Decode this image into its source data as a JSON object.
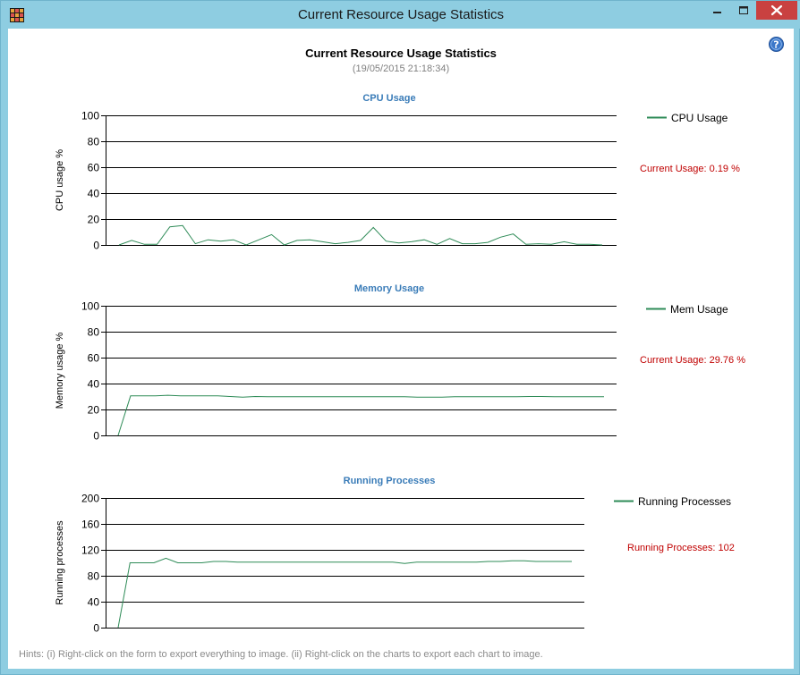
{
  "window": {
    "title": "Current Resource Usage Statistics"
  },
  "report": {
    "title": "Current Resource Usage Statistics",
    "timestamp": "(19/05/2015 21:18:34)"
  },
  "colors": {
    "title_bar": "#8ecde1",
    "close_button": "#c94140",
    "chart_title": "#3a7cb8",
    "series_line": "#2e8b57",
    "current_value": "#c00000"
  },
  "icons": {
    "app": "grid-app-icon",
    "help": "question-icon",
    "minimize": "minimize-icon",
    "maximize": "maximize-icon",
    "close": "close-icon"
  },
  "chart_data": [
    {
      "type": "line",
      "title": "CPU Usage",
      "ylabel": "CPU usage %",
      "ylim": [
        0,
        100
      ],
      "yticks": [
        0,
        20,
        40,
        60,
        80,
        100
      ],
      "legend": "top-right",
      "current_text": "Current Usage: 0.19 %",
      "series": [
        {
          "name": "CPU Usage",
          "values": [
            0,
            3.5,
            0.5,
            0.5,
            14,
            15,
            1,
            4,
            3,
            4,
            0,
            4,
            8,
            0,
            3.5,
            4,
            2.5,
            1,
            2,
            3.5,
            13.5,
            3,
            1.5,
            2.5,
            4,
            0.5,
            5,
            1,
            1,
            2,
            6,
            8.5,
            0.5,
            1,
            0.5,
            2.5,
            0.5,
            0.5,
            0
          ]
        }
      ]
    },
    {
      "type": "line",
      "title": "Memory Usage",
      "ylabel": "Memory usage %",
      "ylim": [
        0,
        100
      ],
      "yticks": [
        0,
        20,
        40,
        60,
        80,
        100
      ],
      "legend": "top-right",
      "current_text": "Current Usage: 29.76 %",
      "series": [
        {
          "name": "Mem Usage",
          "values": [
            0,
            30.5,
            30.5,
            30.5,
            31,
            30.5,
            30.5,
            30.5,
            30.5,
            30,
            29.5,
            30,
            29.8,
            29.8,
            29.8,
            29.8,
            29.8,
            29.8,
            29.8,
            29.8,
            29.8,
            29.8,
            29.8,
            29.8,
            29.5,
            29.5,
            29.5,
            29.8,
            29.8,
            29.8,
            29.8,
            29.8,
            29.8,
            30,
            30,
            29.8,
            29.8,
            29.8,
            29.8,
            29.8
          ]
        }
      ]
    },
    {
      "type": "line",
      "title": "Running Processes",
      "ylabel": "Running processes",
      "ylim": [
        0,
        200
      ],
      "yticks": [
        0,
        40,
        80,
        120,
        160,
        200
      ],
      "legend": "top-right",
      "current_text": "Running Processes: 102",
      "series": [
        {
          "name": "Running Processes",
          "values": [
            0,
            100,
            100,
            100,
            107,
            100,
            100,
            100,
            102,
            102,
            101,
            101,
            101,
            101,
            101,
            101,
            101,
            101,
            101,
            101,
            101,
            101,
            101,
            101,
            99,
            101,
            101,
            101,
            101,
            101,
            101,
            102,
            102,
            103,
            103,
            102,
            102,
            102,
            102
          ]
        }
      ]
    }
  ],
  "hint": "Hints: (i) Right-click on the form to export everything to image. (ii) Right-click on the charts to export each chart to image."
}
